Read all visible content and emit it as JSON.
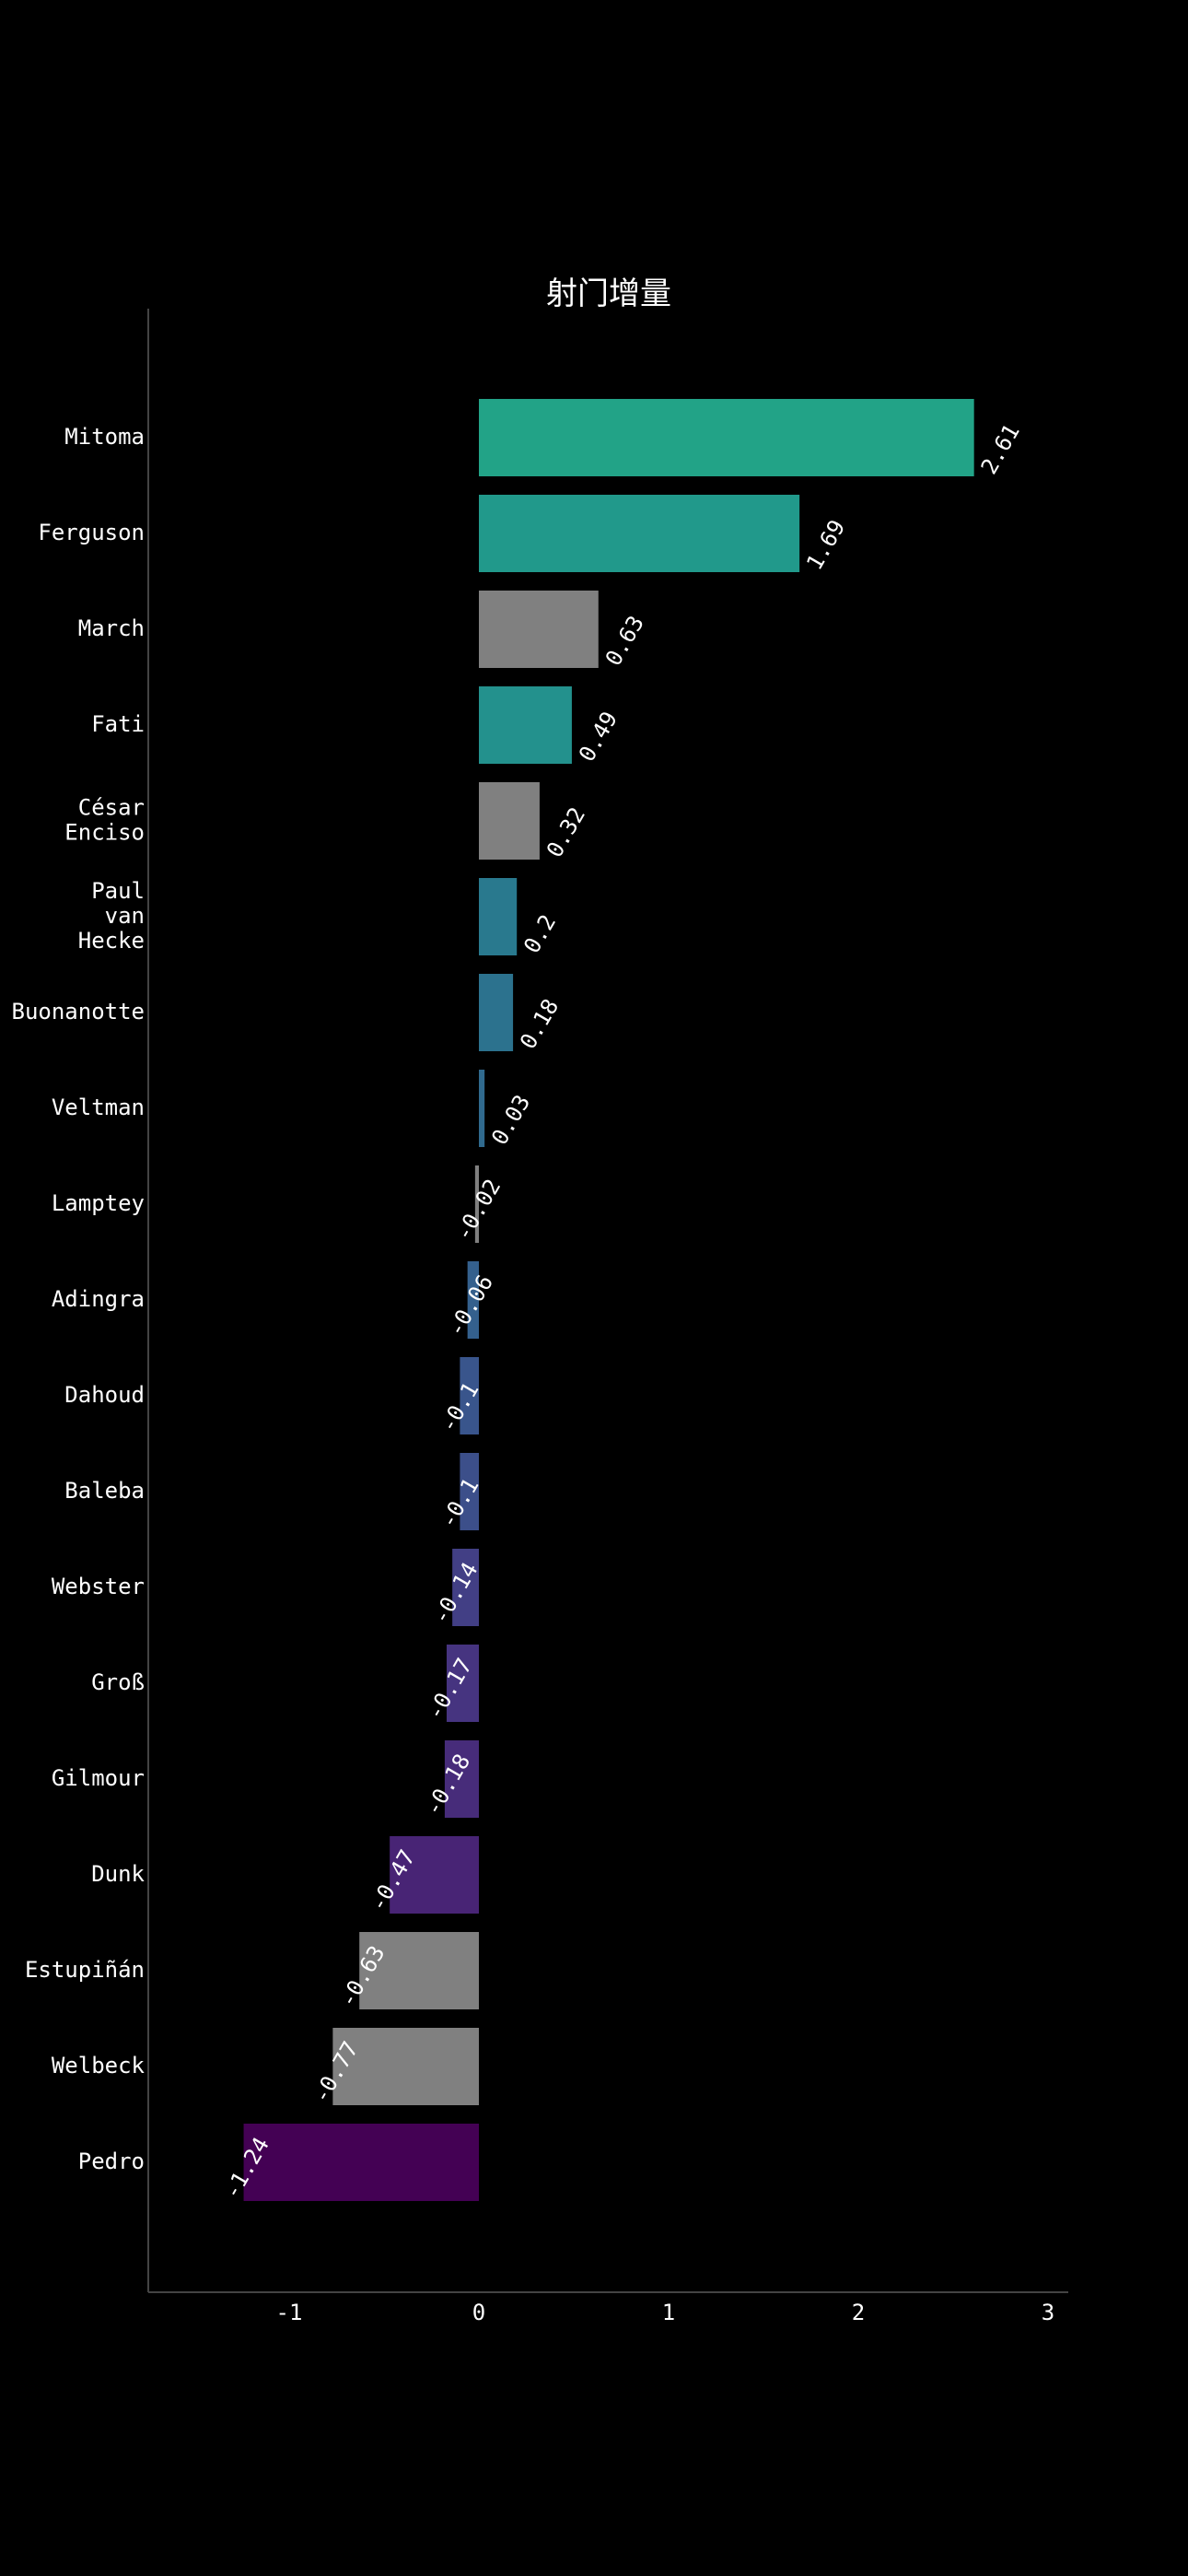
{
  "chart_data": {
    "type": "bar",
    "orientation": "horizontal",
    "title": "射门增量",
    "xlabel": "",
    "ylabel": "",
    "xlim": [
      -1.75,
      3.1
    ],
    "xticks": [
      -1,
      0,
      1,
      2,
      3
    ],
    "grid": false,
    "legend": "none",
    "categories": [
      "Mitoma",
      "Ferguson",
      "March",
      "Fati",
      "César Enciso",
      "Paul van Hecke",
      "Buonanotte",
      "Veltman",
      "Lamptey",
      "Adingra",
      "Dahoud",
      "Baleba",
      "Webster",
      "Groß",
      "Gilmour",
      "Dunk",
      "Estupiñán",
      "Welbeck",
      "Pedro"
    ],
    "category_lines": [
      [
        "Mitoma"
      ],
      [
        "Ferguson"
      ],
      [
        "March"
      ],
      [
        "Fati"
      ],
      [
        "César",
        "Enciso"
      ],
      [
        "Paul",
        "van",
        "Hecke"
      ],
      [
        "Buonanotte"
      ],
      [
        "Veltman"
      ],
      [
        "Lamptey"
      ],
      [
        "Adingra"
      ],
      [
        "Dahoud"
      ],
      [
        "Baleba"
      ],
      [
        "Webster"
      ],
      [
        "Groß"
      ],
      [
        "Gilmour"
      ],
      [
        "Dunk"
      ],
      [
        "Estupiñán"
      ],
      [
        "Welbeck"
      ],
      [
        "Pedro"
      ]
    ],
    "values": [
      2.61,
      1.69,
      0.63,
      0.49,
      0.32,
      0.2,
      0.18,
      0.03,
      -0.02,
      -0.06,
      -0.1,
      -0.1,
      -0.14,
      -0.17,
      -0.18,
      -0.47,
      -0.63,
      -0.77,
      -1.24
    ],
    "value_labels": [
      "2.61",
      "1.69",
      "0.63",
      "0.49",
      "0.32",
      "0.2",
      "0.18",
      "0.03",
      "-0.02",
      "-0.06",
      "-0.1",
      "-0.1",
      "-0.14",
      "-0.17",
      "-0.18",
      "-0.47",
      "-0.63",
      "-0.77",
      "-1.24"
    ],
    "colors": [
      "#22a387",
      "#21998b",
      "#808080",
      "#23918d",
      "#808080",
      "#29798e",
      "#2c728e",
      "#306a8e",
      "#808080",
      "#34608d",
      "#39558c",
      "#3c4f8a",
      "#423f85",
      "#463480",
      "#472c7a",
      "#482475",
      "#808080",
      "#808080",
      "#440154"
    ]
  }
}
